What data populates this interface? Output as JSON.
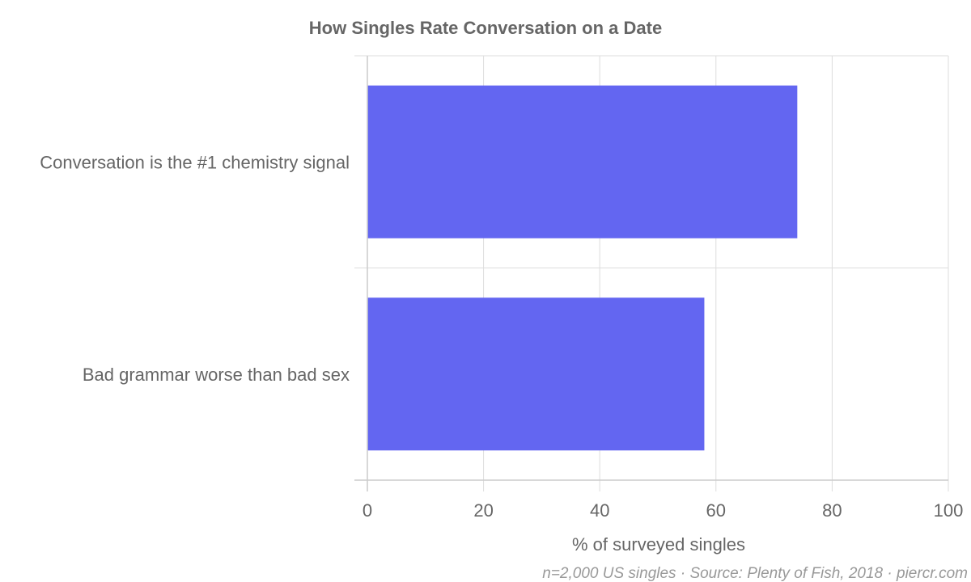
{
  "chart_data": {
    "type": "bar",
    "orientation": "horizontal",
    "title": "How Singles Rate Conversation on a Date",
    "categories": [
      "Conversation is the #1 chemistry signal",
      "Bad grammar worse than bad sex"
    ],
    "values": [
      74,
      58
    ],
    "xlabel": "% of surveyed singles",
    "ylabel": "",
    "xlim": [
      0,
      100
    ],
    "xticks": [
      "0",
      "20",
      "40",
      "60",
      "80",
      "100"
    ],
    "grid": true,
    "bar_color": "#6366f1",
    "source": "n=2,000 US singles · Source: Plenty of Fish, 2018 · piercr.com"
  }
}
